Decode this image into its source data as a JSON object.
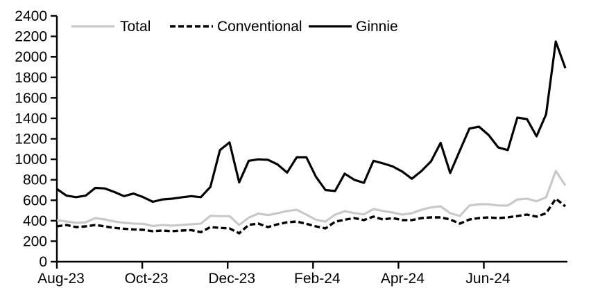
{
  "chart_data": {
    "type": "line",
    "title": "",
    "xlabel": "",
    "ylabel": "",
    "ylim": [
      0,
      2400
    ],
    "ytick_step": 200,
    "y_tick_labels": [
      "0",
      "200",
      "400",
      "600",
      "800",
      "1000",
      "1200",
      "1400",
      "1600",
      "1800",
      "2000",
      "2200",
      "2400"
    ],
    "x_tick_labels": [
      "Aug-23",
      "Oct-23",
      "Dec-23",
      "Feb-24",
      "Apr-24",
      "Jun-24"
    ],
    "x_frequency": "weekly",
    "grid": false,
    "legend_position": "top-inside",
    "colors": {
      "axis": "#000000",
      "background": "#ffffff",
      "total_line": "#c8c8c8",
      "conventional_line": "#000000",
      "ginnie_line": "#000000"
    },
    "series": [
      {
        "name": "Total",
        "color": "#c8c8c8",
        "dash": "solid",
        "values": [
          405,
          392,
          380,
          385,
          426,
          412,
          392,
          380,
          372,
          370,
          348,
          358,
          352,
          358,
          365,
          372,
          448,
          445,
          445,
          358,
          430,
          470,
          455,
          473,
          495,
          507,
          460,
          410,
          392,
          460,
          493,
          475,
          462,
          514,
          495,
          480,
          460,
          473,
          507,
          530,
          541,
          473,
          446,
          548,
          561,
          561,
          548,
          548,
          608,
          615,
          590,
          629,
          886,
          744
        ]
      },
      {
        "name": "Conventional",
        "color": "#000000",
        "dash": "dashed",
        "values": [
          345,
          358,
          338,
          345,
          358,
          345,
          330,
          322,
          315,
          311,
          298,
          304,
          298,
          304,
          308,
          288,
          338,
          330,
          325,
          277,
          360,
          372,
          338,
          365,
          385,
          392,
          370,
          345,
          325,
          390,
          410,
          426,
          406,
          440,
          412,
          426,
          406,
          406,
          426,
          433,
          433,
          412,
          372,
          412,
          426,
          433,
          426,
          433,
          446,
          460,
          440,
          473,
          615,
          541
        ]
      },
      {
        "name": "Ginnie",
        "color": "#000000",
        "dash": "solid",
        "values": [
          710,
          645,
          630,
          645,
          720,
          715,
          680,
          640,
          665,
          630,
          585,
          608,
          615,
          628,
          640,
          630,
          730,
          1090,
          1165,
          775,
          985,
          1000,
          995,
          950,
          870,
          1020,
          1020,
          830,
          700,
          690,
          860,
          800,
          770,
          985,
          960,
          930,
          880,
          810,
          885,
          980,
          1160,
          866,
          1085,
          1300,
          1318,
          1237,
          1116,
          1090,
          1406,
          1393,
          1224,
          1440,
          2150,
          1890
        ]
      }
    ]
  }
}
